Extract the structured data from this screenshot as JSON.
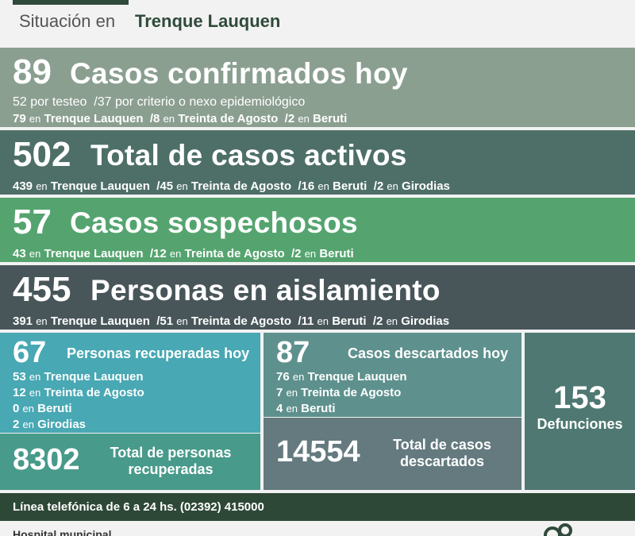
{
  "header": {
    "lead": "Situación en",
    "city": "Trenque Lauquen"
  },
  "confirmed": {
    "number": "89",
    "title": "Casos confirmados hoy",
    "n1": "52",
    "t1": "por testeo",
    "n2": "/37",
    "t2": "por criterio o nexo epidemiológico",
    "l2": [
      {
        "n": "79",
        "p": "en",
        "c": "Trenque Lauquen"
      },
      {
        "n": "/8",
        "p": "en",
        "c": "Treinta de Agosto"
      },
      {
        "n": "/2",
        "p": "en",
        "c": "Beruti"
      }
    ]
  },
  "active": {
    "number": "502",
    "title": "Total de casos activos",
    "items": [
      {
        "n": "439",
        "p": "en",
        "c": "Trenque Lauquen"
      },
      {
        "n": "/45",
        "p": "en",
        "c": "Treinta de Agosto"
      },
      {
        "n": "/16",
        "p": "en",
        "c": "Beruti"
      },
      {
        "n": "/2",
        "p": "en",
        "c": "Girodias"
      }
    ]
  },
  "suspected": {
    "number": "57",
    "title": "Casos sospechosos",
    "items": [
      {
        "n": "43",
        "p": "en",
        "c": "Trenque Lauquen"
      },
      {
        "n": "/12",
        "p": "en",
        "c": "Treinta de Agosto"
      },
      {
        "n": "/2",
        "p": "en",
        "c": "Beruti"
      }
    ]
  },
  "isolation": {
    "number": "455",
    "title": "Personas en aislamiento",
    "items": [
      {
        "n": "391",
        "p": "en",
        "c": "Trenque Lauquen"
      },
      {
        "n": "/51",
        "p": "en",
        "c": "Treinta de Agosto"
      },
      {
        "n": "/11",
        "p": "en",
        "c": "Beruti"
      },
      {
        "n": "/2",
        "p": "en",
        "c": "Girodias"
      }
    ]
  },
  "recovered_today": {
    "number": "67",
    "title": "Personas recuperadas hoy",
    "items": [
      {
        "n": "53",
        "p": "en",
        "c": "Trenque Lauquen"
      },
      {
        "n": "12",
        "p": "en",
        "c": "Treinta de Agosto"
      },
      {
        "n": "0",
        "p": "en",
        "c": "Beruti"
      },
      {
        "n": "2",
        "p": "en",
        "c": "Girodias"
      }
    ]
  },
  "recovered_total": {
    "number": "8302",
    "label1": "Total de personas",
    "label2": "recuperadas"
  },
  "discarded_today": {
    "number": "87",
    "title": "Casos descartados hoy",
    "items": [
      {
        "n": "76",
        "p": "en",
        "c": "Trenque Lauquen"
      },
      {
        "n": "7",
        "p": "en",
        "c": "Treinta de Agosto"
      },
      {
        "n": "4",
        "p": "en",
        "c": "Beruti"
      }
    ]
  },
  "discarded_total": {
    "number": "14554",
    "label1": "Total de casos",
    "label2": "descartados"
  },
  "deaths": {
    "number": "153",
    "label": "Defunciones"
  },
  "phone": "Línea telefónica de 6 a 24 hs. (02392) 415000",
  "footer": {
    "hospital": "Hospital municipal"
  }
}
